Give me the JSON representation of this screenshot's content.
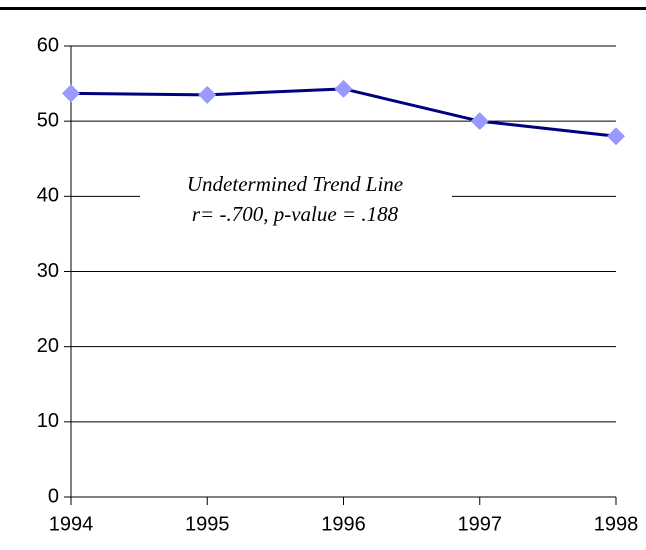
{
  "chart_data": {
    "type": "line",
    "x": [
      1994,
      1995,
      1996,
      1997,
      1998
    ],
    "series": [
      {
        "color": "#000080",
        "marker_color": "#9999ff",
        "values": [
          53.7,
          53.5,
          54.3,
          50.0,
          48.0
        ]
      }
    ],
    "xlim": [
      1994,
      1998
    ],
    "xticks": [
      1994,
      1995,
      1996,
      1997,
      1998
    ],
    "ylim": [
      0,
      60
    ],
    "yticks": [
      0,
      10,
      20,
      30,
      40,
      50,
      60
    ],
    "grid": true,
    "annotation": [
      "Undetermined Trend Line",
      "r= -.700, p-value = .188"
    ]
  }
}
